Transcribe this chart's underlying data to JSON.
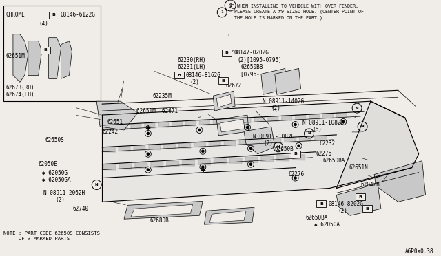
{
  "bg_color": "#f0ede8",
  "fig_width": 6.4,
  "fig_height": 3.72,
  "dpi": 100,
  "diagram_code": "A6P0×0.38",
  "note_line1": "NOTE : PART CODE 62650S CONSISTS",
  "note_line2": "     OF ★ MARKED PARTS",
  "instruction_line1": "① WHEN INSTALLING TO VEHICLE WITH OVER FENDER,",
  "instruction_line2": "   PLEASE CREATE A #9 SIZED HOLE. (CENTER POINT OF",
  "instruction_line3": "   THE HOLE IS MARKED ON THE PART.)"
}
